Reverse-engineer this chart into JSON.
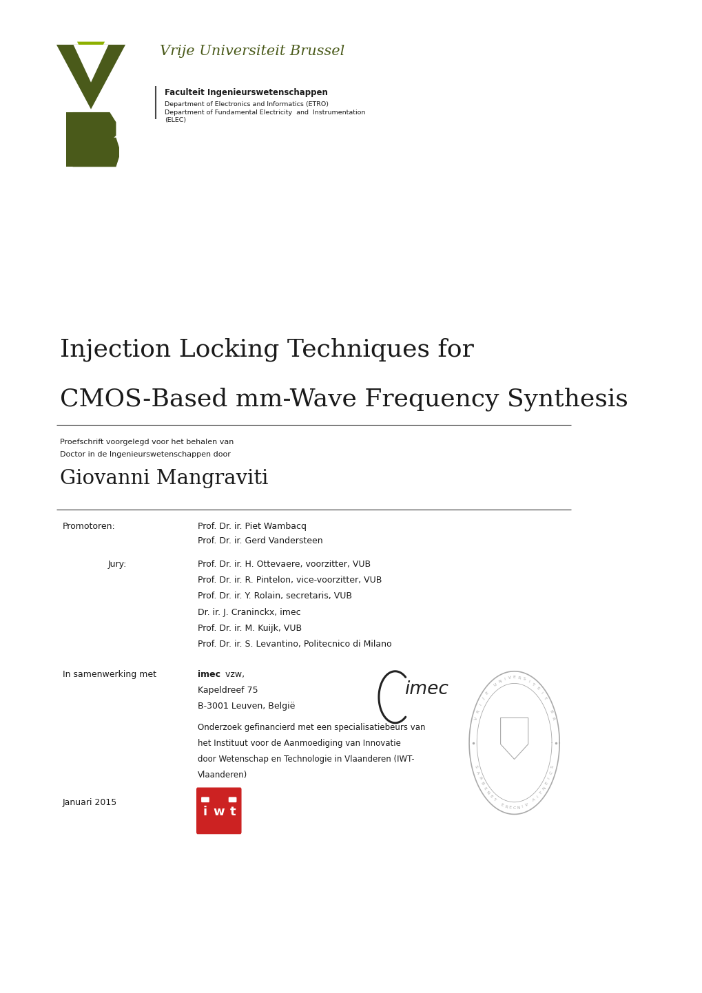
{
  "bg_color": "#ffffff",
  "page_width": 10.2,
  "page_height": 14.42,
  "vub_name": "Vrije Universiteit Brussel",
  "vub_name_color": "#4a5a1a",
  "faculty_line": "Faculteit Ingenieurswetenschappen",
  "dept1": "Department of Electronics and Informatics (ETRO)",
  "dept2": "Department of Fundamental Electricity  and  Instrumentation",
  "dept3": "(ELEC)",
  "title_line1": "Injection Locking Techniques for",
  "title_line2": "CMOS-Based mm-Wave Frequency Synthesis",
  "subtitle1": "Proefschrift voorgelegd voor het behalen van",
  "subtitle2": "Doctor in de Ingenieurswetenschappen door",
  "author": "Giovanni Mangraviti",
  "promotoren_label": "Promotoren:",
  "promotor1": "Prof. Dr. ir. Piet Wambacq",
  "promotor2": "Prof. Dr. ir. Gerd Vandersteen",
  "jury_label": "Jury:",
  "jury1": "Prof. Dr. ir. H. Ottevaere, voorzitter, VUB",
  "jury2": "Prof. Dr. ir. R. Pintelon, vice-voorzitter, VUB",
  "jury3": "Prof. Dr. ir. Y. Rolain, secretaris, VUB",
  "jury4": "Dr. ir. J. Craninckx, imec",
  "jury5": "Prof. Dr. ir. M. Kuijk, VUB",
  "jury6": "Prof. Dr. ir. S. Levantino, Politecnico di Milano",
  "collab_label": "In samenwerking met",
  "imec_bold": "imec",
  "imec_rest": " vzw,",
  "imec_addr1": "Kapeldreef 75",
  "imec_addr2": "B-3001 Leuven, België",
  "onderzoek_lines": [
    "Onderzoek gefinancierd met een specialisatiebeurs van",
    "het Instituut voor de Aanmoediging van Innovatie",
    "door Wetenschap en Technologie in Vlaanderen (IWT-",
    "Vlaanderen)"
  ],
  "date": "Januari 2015",
  "dark_olive": "#4a5a1a",
  "light_green": "#8db000",
  "red_iwt": "#cc2222",
  "text_color": "#1a1a1a",
  "seal_color": "#aaaaaa",
  "rule_color": "#333333",
  "seal_text_top": "VRIJE UNIVERSITEIT BR",
  "seal_text_bot": "SCIENTIA VINCERE TENEBRAS"
}
